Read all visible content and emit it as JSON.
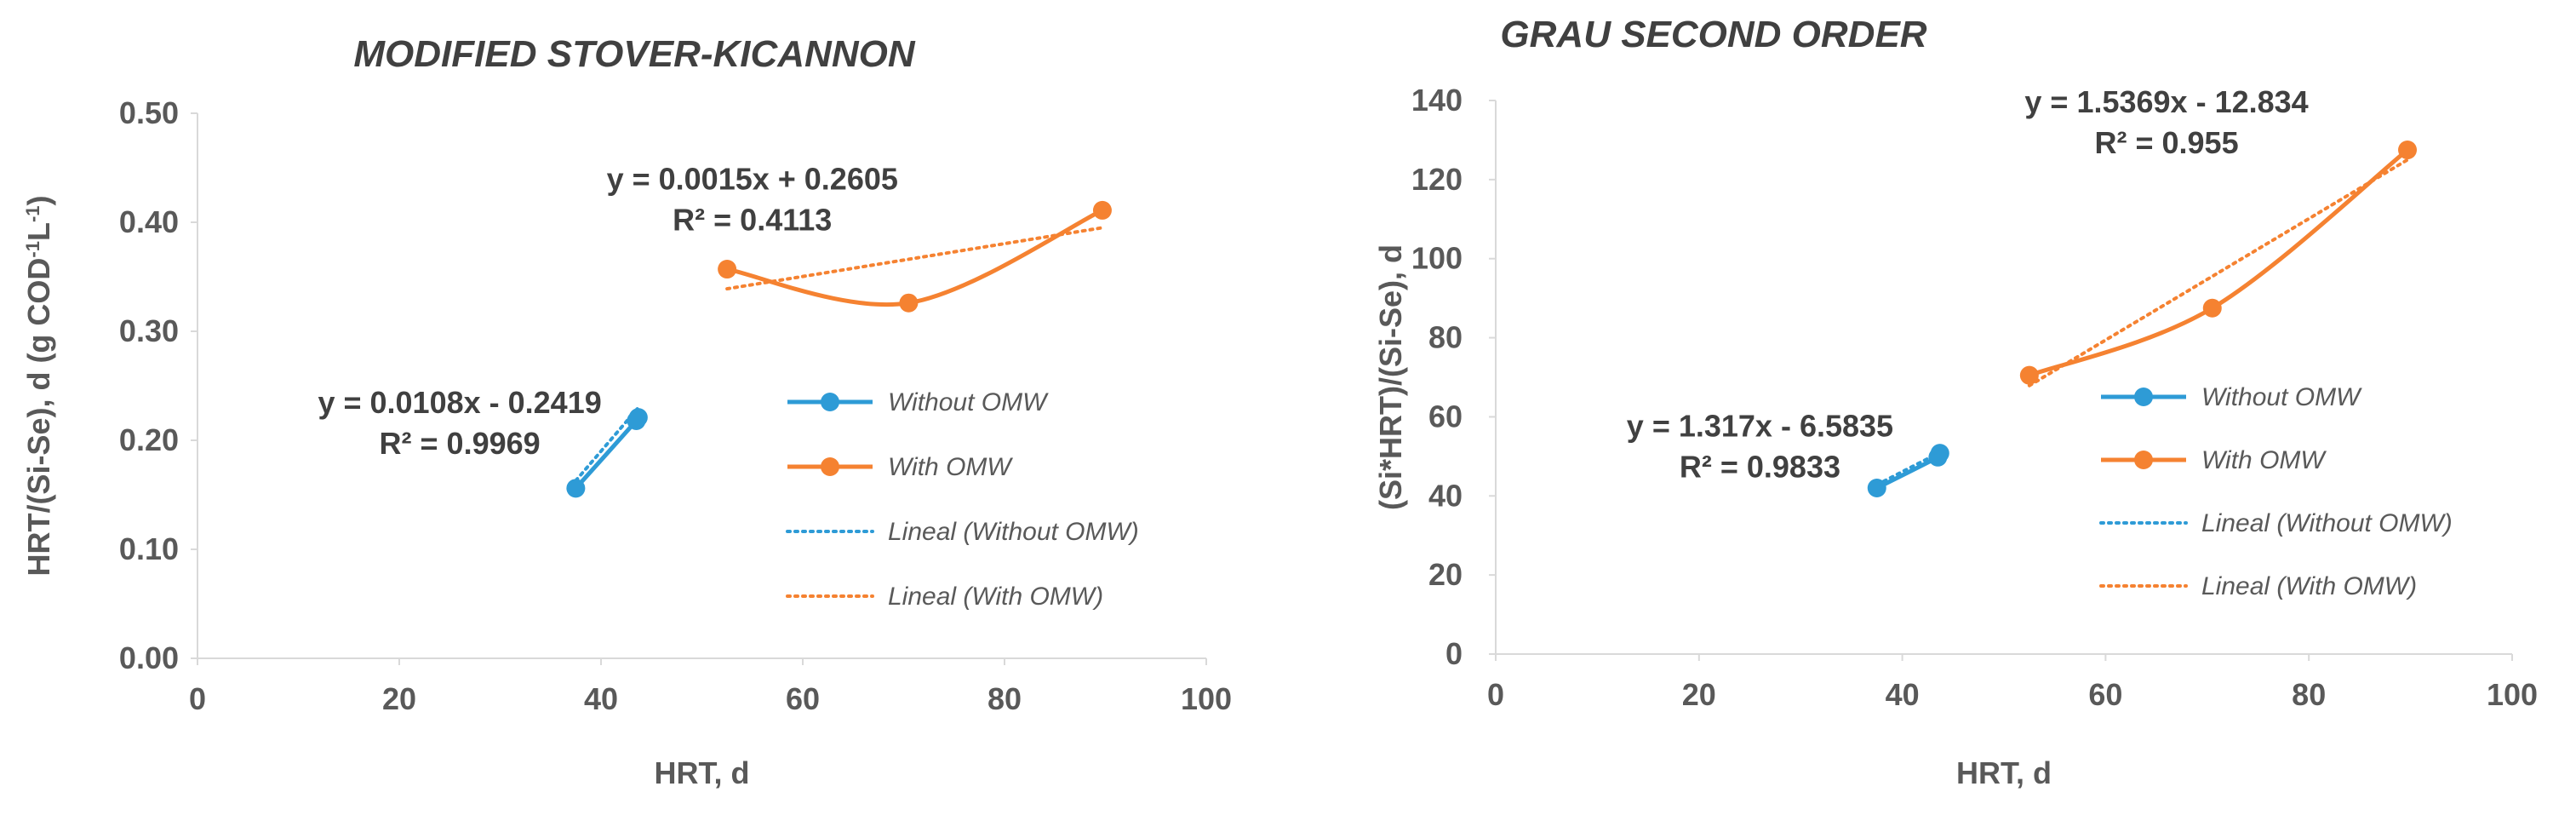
{
  "chart_data": [
    {
      "type": "scatter",
      "title": "MODIFIED STOVER-KICANNON",
      "xlabel": "HRT, d",
      "ylabel": "HRT/(Si-Se), d (g COD",
      "ylabel_sup1": "-1",
      "ylabel_mid": "L",
      "ylabel_sup2": "-1",
      "ylabel_end": ")",
      "xlim": [
        0,
        100
      ],
      "ylim": [
        0,
        0.5
      ],
      "xticks": [
        0,
        20,
        40,
        60,
        80,
        100
      ],
      "yticks": [
        0.0,
        0.1,
        0.2,
        0.3,
        0.4,
        0.5
      ],
      "xtick_labels": [
        "0",
        "20",
        "40",
        "60",
        "80",
        "100"
      ],
      "ytick_labels": [
        "0.00",
        "0.10",
        "0.20",
        "0.30",
        "0.40",
        "0.50"
      ],
      "series": [
        {
          "name": "Without OMW",
          "color": "#2e9bd6",
          "style": "solid-marker",
          "x": [
            37.5,
            43.5,
            43.7
          ],
          "y": [
            0.156,
            0.218,
            0.221
          ]
        },
        {
          "name": "With OMW",
          "color": "#f58231",
          "style": "solid-marker",
          "x": [
            52.5,
            70.5,
            89.7
          ],
          "y": [
            0.357,
            0.326,
            0.411
          ]
        },
        {
          "name": "Lineal (Without OMW)",
          "color": "#2e9bd6",
          "style": "dotted",
          "x": [
            37.5,
            43.7
          ],
          "y": [
            0.163,
            0.23
          ]
        },
        {
          "name": "Lineal (With OMW)",
          "color": "#f58231",
          "style": "dotted",
          "x": [
            52.5,
            89.7
          ],
          "y": [
            0.339,
            0.395
          ]
        }
      ],
      "legend_position": "right",
      "annotations": [
        {
          "equation": "y = 0.0108x - 0.2419",
          "r2": "R² = 0.9969",
          "at_x": 26,
          "at_y": 0.225
        },
        {
          "equation": "y = 0.0015x + 0.2605",
          "r2": "R² = 0.4113",
          "at_x": 55,
          "at_y": 0.43
        }
      ]
    },
    {
      "type": "scatter",
      "title": "GRAU SECOND ORDER",
      "xlabel": "HRT, d",
      "ylabel": "(Si*HRT)/(Si-Se), d",
      "xlim": [
        0,
        100
      ],
      "ylim": [
        0,
        140
      ],
      "xticks": [
        0,
        20,
        40,
        60,
        80,
        100
      ],
      "yticks": [
        0,
        20,
        40,
        60,
        80,
        100,
        120,
        140
      ],
      "xtick_labels": [
        "0",
        "20",
        "40",
        "60",
        "80",
        "100"
      ],
      "ytick_labels": [
        "0",
        "20",
        "40",
        "60",
        "80",
        "100",
        "120",
        "140"
      ],
      "series": [
        {
          "name": "Without OMW",
          "color": "#2e9bd6",
          "style": "solid-marker",
          "x": [
            37.5,
            43.5,
            43.7
          ],
          "y": [
            42,
            49.8,
            50.8
          ]
        },
        {
          "name": "With OMW",
          "color": "#f58231",
          "style": "solid-marker",
          "x": [
            52.5,
            70.5,
            89.7
          ],
          "y": [
            70.5,
            87.5,
            127.5
          ]
        },
        {
          "name": "Lineal (Without OMW)",
          "color": "#2e9bd6",
          "style": "dotted",
          "x": [
            37.5,
            43.7
          ],
          "y": [
            42.8,
            51.0
          ]
        },
        {
          "name": "Lineal (With OMW)",
          "color": "#f58231",
          "style": "dotted",
          "x": [
            52.5,
            89.7
          ],
          "y": [
            67.9,
            125.0
          ]
        }
      ],
      "legend_position": "right",
      "annotations": [
        {
          "equation": "y = 1.317x - 6.5835",
          "r2": "R² = 0.9833",
          "at_x": 26,
          "at_y": 55
        },
        {
          "equation": "y = 1.5369x - 12.834",
          "r2": "R² = 0.955",
          "at_x": 66,
          "at_y": 137
        }
      ]
    }
  ]
}
